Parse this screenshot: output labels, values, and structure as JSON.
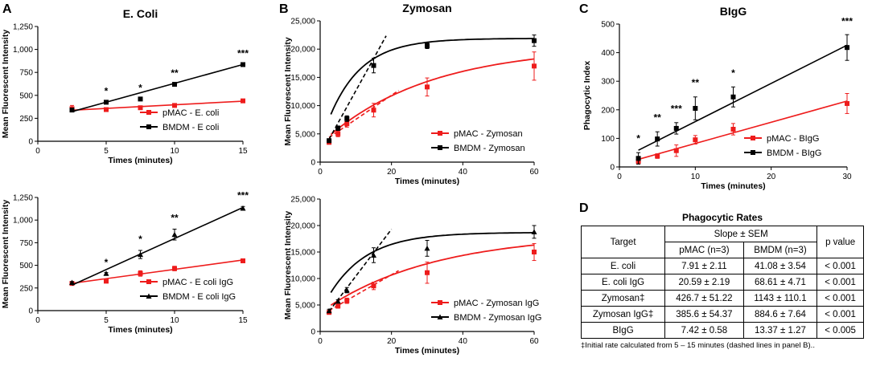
{
  "colors": {
    "pmac": "#ee1c1c",
    "bmdm": "#000000"
  },
  "panel_labels": [
    "A",
    "B",
    "C",
    "D"
  ],
  "chart_data": [
    {
      "id": "ecoli",
      "type": "scatter",
      "title": "E. Coli",
      "xlabel": "Times (minutes)",
      "ylabel": "Mean Fluorescent Intensity",
      "xlim": [
        0,
        15
      ],
      "ylim": [
        0,
        1250
      ],
      "xticks": [
        0,
        5,
        10,
        15
      ],
      "yticks": [
        0,
        250,
        500,
        750,
        1000,
        1250
      ],
      "legend_position": "bottom-right",
      "series": [
        {
          "name": "pMAC - E. coli",
          "color": "#ee1c1c",
          "marker": "square",
          "x": [
            2.5,
            5,
            7.5,
            10,
            15
          ],
          "y": [
            355,
            345,
            365,
            390,
            440
          ],
          "err": [
            35,
            12,
            15,
            15,
            15
          ],
          "fit": {
            "kind": "linear",
            "from": 2.5,
            "to": 15,
            "slope": 7.91,
            "intercept": 318
          }
        },
        {
          "name": "BMDM - E coli",
          "color": "#000000",
          "marker": "square",
          "x": [
            2.5,
            5,
            7.5,
            10,
            15
          ],
          "y": [
            340,
            425,
            460,
            620,
            835
          ],
          "err": [
            20,
            10,
            10,
            15,
            15
          ],
          "fit": {
            "kind": "linear",
            "from": 2.5,
            "to": 15,
            "slope": 41.08,
            "intercept": 220
          }
        }
      ],
      "annotations": [
        {
          "x": 5,
          "y": 425,
          "text": "*"
        },
        {
          "x": 7.5,
          "y": 460,
          "text": "*"
        },
        {
          "x": 10,
          "y": 620,
          "text": "**"
        },
        {
          "x": 15,
          "y": 835,
          "text": "***"
        }
      ]
    },
    {
      "id": "zymosan",
      "type": "scatter",
      "title": "Zymosan",
      "xlabel": "Times (minutes)",
      "ylabel": "Mean Fluorescent Intensity",
      "xlim": [
        0,
        60
      ],
      "ylim": [
        0,
        25000
      ],
      "xticks": [
        0,
        20,
        40,
        60
      ],
      "yticks": [
        0,
        5000,
        10000,
        15000,
        20000,
        25000
      ],
      "legend_position": "bottom-right",
      "series": [
        {
          "name": "pMAC - Zymosan",
          "color": "#ee1c1c",
          "marker": "square",
          "x": [
            2.5,
            5,
            7.5,
            15,
            30,
            60
          ],
          "y": [
            3500,
            5000,
            6800,
            9200,
            13300,
            17000
          ],
          "err": [
            300,
            500,
            600,
            1200,
            1600,
            2500
          ],
          "fit": {
            "kind": "exp",
            "ymax": 20500,
            "y0": 3200,
            "k": 0.034
          },
          "initial": {
            "from": 2.5,
            "to": 22,
            "slope": 426.7,
            "intercept": 3300
          }
        },
        {
          "name": "BMDM - Zymosan",
          "color": "#000000",
          "marker": "square",
          "x": [
            2.5,
            5,
            7.5,
            15,
            30,
            60
          ],
          "y": [
            3800,
            6000,
            7700,
            17100,
            20600,
            21500
          ],
          "err": [
            200,
            400,
            500,
            1300,
            500,
            1000
          ],
          "fit": {
            "kind": "exp",
            "ymax": 21900,
            "y0": 3200,
            "k": 0.11
          },
          "initial": {
            "from": 2.5,
            "to": 18.5,
            "slope": 1143,
            "intercept": 1200
          }
        }
      ]
    },
    {
      "id": "blgg",
      "type": "scatter",
      "title": "BIgG",
      "xlabel": "Times (minutes)",
      "ylabel": "Phagocytic Index",
      "xlim": [
        0,
        30
      ],
      "ylim": [
        0,
        500
      ],
      "xticks": [
        0,
        10,
        20,
        30
      ],
      "yticks": [
        0,
        100,
        200,
        300,
        400,
        500
      ],
      "legend_position": "bottom-right",
      "series": [
        {
          "name": "pMAC - BIgG",
          "color": "#ee1c1c",
          "marker": "square",
          "x": [
            2.5,
            5,
            7.5,
            10,
            15,
            30
          ],
          "y": [
            20,
            38,
            57,
            95,
            132,
            222
          ],
          "err": [
            10,
            8,
            20,
            15,
            20,
            35
          ],
          "fit": {
            "kind": "linear",
            "from": 2.5,
            "to": 30,
            "slope": 7.42,
            "intercept": 8
          }
        },
        {
          "name": "BMDM - BIgG",
          "color": "#000000",
          "marker": "square",
          "x": [
            2.5,
            5,
            7.5,
            10,
            15,
            30
          ],
          "y": [
            30,
            98,
            135,
            205,
            245,
            418
          ],
          "err": [
            20,
            25,
            20,
            40,
            35,
            45
          ],
          "fit": {
            "kind": "linear",
            "from": 2.5,
            "to": 30,
            "slope": 13.37,
            "intercept": 25
          }
        }
      ],
      "annotations": [
        {
          "x": 2.5,
          "y": 60,
          "text": "*"
        },
        {
          "x": 5,
          "y": 133,
          "text": "**"
        },
        {
          "x": 7.5,
          "y": 165,
          "text": "***"
        },
        {
          "x": 10,
          "y": 255,
          "text": "**"
        },
        {
          "x": 15,
          "y": 290,
          "text": "*"
        },
        {
          "x": 30,
          "y": 470,
          "text": "***"
        }
      ]
    },
    {
      "id": "ecoli-igg",
      "type": "scatter",
      "title": "",
      "xlabel": "Times (minutes)",
      "ylabel": "Mean Fluorescent Intensity",
      "xlim": [
        0,
        15
      ],
      "ylim": [
        0,
        1250
      ],
      "xticks": [
        0,
        5,
        10,
        15
      ],
      "yticks": [
        0,
        250,
        500,
        750,
        1000,
        1250
      ],
      "legend_position": "bottom-right",
      "series": [
        {
          "name": "pMAC - E coli IgG",
          "color": "#ee1c1c",
          "marker": "square",
          "x": [
            2.5,
            5,
            7.5,
            10,
            15
          ],
          "y": [
            300,
            325,
            410,
            465,
            550
          ],
          "err": [
            10,
            10,
            30,
            25,
            20
          ],
          "fit": {
            "kind": "linear",
            "from": 2.5,
            "to": 15,
            "slope": 20.59,
            "intercept": 250
          }
        },
        {
          "name": "BMDM - E coli IgG",
          "color": "#000000",
          "marker": "triangle",
          "x": [
            2.5,
            5,
            7.5,
            10,
            15
          ],
          "y": [
            310,
            410,
            620,
            840,
            1130
          ],
          "err": [
            10,
            10,
            45,
            60,
            20
          ],
          "fit": {
            "kind": "linear",
            "from": 2.5,
            "to": 15,
            "slope": 68.61,
            "intercept": 110
          }
        }
      ],
      "annotations": [
        {
          "x": 5,
          "y": 410,
          "text": "*"
        },
        {
          "x": 7.5,
          "y": 665,
          "text": "*"
        },
        {
          "x": 10,
          "y": 900,
          "text": "**"
        },
        {
          "x": 15,
          "y": 1150,
          "text": "***"
        }
      ]
    },
    {
      "id": "zymosan-igg",
      "type": "scatter",
      "title": "",
      "xlabel": "Times (minutes)",
      "ylabel": "Mean Fluorescent Intensity",
      "xlim": [
        0,
        60
      ],
      "ylim": [
        0,
        25000
      ],
      "xticks": [
        0,
        20,
        40,
        60
      ],
      "yticks": [
        0,
        5000,
        10000,
        15000,
        20000,
        25000
      ],
      "legend_position": "bottom-right",
      "series": [
        {
          "name": "pMAC - Zymosan IgG",
          "color": "#ee1c1c",
          "marker": "square",
          "x": [
            2.5,
            5,
            7.5,
            15,
            30,
            60
          ],
          "y": [
            3600,
            4800,
            5800,
            8600,
            11100,
            15000
          ],
          "err": [
            300,
            400,
            500,
            700,
            2000,
            1600
          ],
          "fit": {
            "kind": "exp",
            "ymax": 18500,
            "y0": 3600,
            "k": 0.032
          },
          "initial": {
            "from": 2.5,
            "to": 22,
            "slope": 385.6,
            "intercept": 3000
          }
        },
        {
          "name": "BMDM - Zymosan IgG",
          "color": "#000000",
          "marker": "triangle",
          "x": [
            2.5,
            5,
            7.5,
            15,
            30,
            60
          ],
          "y": [
            3900,
            5700,
            7800,
            14400,
            15700,
            18800
          ],
          "err": [
            300,
            300,
            500,
            1400,
            1500,
            1200
          ],
          "fit": {
            "kind": "exp",
            "ymax": 18700,
            "y0": 3600,
            "k": 0.095
          },
          "initial": {
            "from": 2.5,
            "to": 20,
            "slope": 884.6,
            "intercept": 1600
          }
        }
      ]
    }
  ],
  "table": {
    "title": "Phagocytic Rates",
    "head": {
      "target": "Target",
      "slope": "Slope ± SEM",
      "pmac": "pMAC (n=3)",
      "bmdm": "BMDM (n=3)",
      "p": "p value"
    },
    "rows": [
      [
        "E. coli",
        "7.91 ± 2.11",
        "41.08 ± 3.54",
        "< 0.001"
      ],
      [
        "E. coli IgG",
        "20.59 ± 2.19",
        "68.61 ± 4.71",
        "< 0.001"
      ],
      [
        "Zymosan‡",
        "426.7 ± 51.22",
        "1143 ± 110.1",
        "< 0.001"
      ],
      [
        "Zymosan IgG‡",
        "385.6 ± 54.37",
        "884.6 ± 7.64",
        "< 0.001"
      ],
      [
        "BIgG",
        "7.42 ± 0.58",
        "13.37 ± 1.27",
        "< 0.005"
      ]
    ],
    "footnote": "‡Initial rate calculated from 5 – 15 minutes (dashed lines in panel B).."
  }
}
